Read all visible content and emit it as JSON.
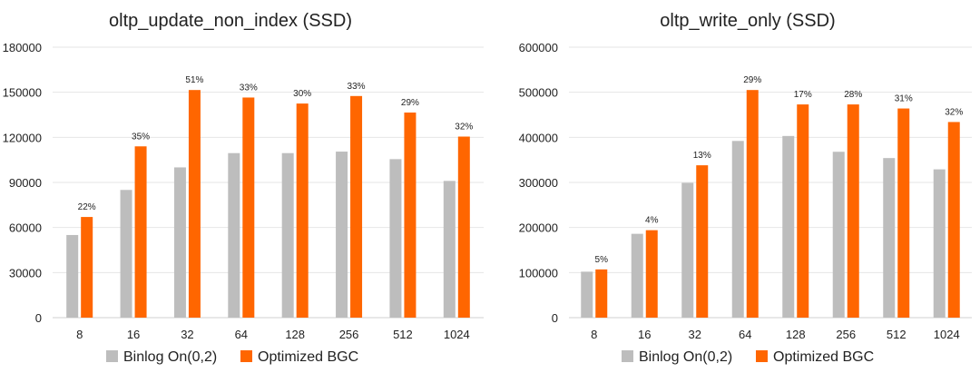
{
  "colors": {
    "binlog": "#BDBDBD",
    "optimized": "#FF6600",
    "grid": "#E6E6E6",
    "text": "#222222"
  },
  "chart_data": [
    {
      "type": "bar",
      "title": "oltp_update_non_index (SSD)",
      "categories": [
        "8",
        "16",
        "32",
        "64",
        "128",
        "256",
        "512",
        "1024"
      ],
      "ylim": [
        0,
        180000
      ],
      "yticks": [
        "0",
        "30000",
        "60000",
        "90000",
        "120000",
        "150000",
        "180000"
      ],
      "ytick_values": [
        0,
        30000,
        60000,
        90000,
        120000,
        150000,
        180000
      ],
      "grid": true,
      "legend": "bottom",
      "series": [
        {
          "name": "Binlog On(0,2)",
          "values": [
            55000,
            85000,
            100000,
            109500,
            109500,
            110500,
            105500,
            91000
          ]
        },
        {
          "name": "Optimized BGC",
          "values": [
            67000,
            114000,
            151500,
            146500,
            142500,
            147500,
            136500,
            120500
          ]
        }
      ],
      "annotations": [
        "22%",
        "35%",
        "51%",
        "33%",
        "30%",
        "33%",
        "29%",
        "32%"
      ]
    },
    {
      "type": "bar",
      "title": "oltp_write_only (SSD)",
      "categories": [
        "8",
        "16",
        "32",
        "64",
        "128",
        "256",
        "512",
        "1024"
      ],
      "ylim": [
        0,
        600000
      ],
      "yticks": [
        "0",
        "100000",
        "200000",
        "300000",
        "400000",
        "500000",
        "600000"
      ],
      "ytick_values": [
        0,
        100000,
        200000,
        300000,
        400000,
        500000,
        600000
      ],
      "grid": true,
      "legend": "bottom",
      "series": [
        {
          "name": "Binlog On(0,2)",
          "values": [
            102000,
            186000,
            299000,
            392000,
            403000,
            368000,
            354000,
            329000
          ]
        },
        {
          "name": "Optimized BGC",
          "values": [
            107000,
            194000,
            338000,
            505000,
            473000,
            473000,
            464000,
            434000
          ]
        }
      ],
      "annotations": [
        "5%",
        "4%",
        "13%",
        "29%",
        "17%",
        "28%",
        "31%",
        "32%"
      ]
    }
  ]
}
